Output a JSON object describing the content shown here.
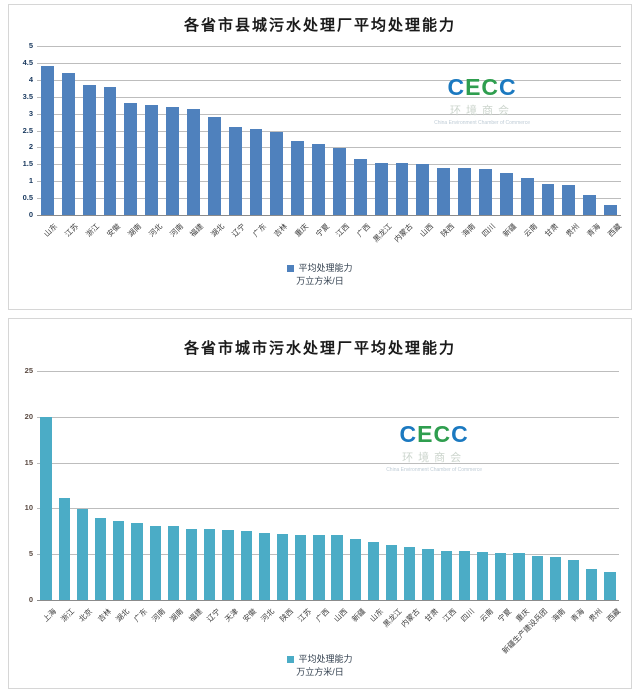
{
  "watermark": {
    "letters": [
      {
        "ch": "C",
        "color": "#1b79c0"
      },
      {
        "ch": "E",
        "color": "#2f9e4f"
      },
      {
        "ch": "C",
        "color": "#2f9e4f"
      },
      {
        "ch": "C",
        "color": "#1b79c0"
      }
    ],
    "cecc": "CECC",
    "chinese": "环境商会",
    "english": "China Environment Chamber of Commerce"
  },
  "chart_data": [
    {
      "type": "bar",
      "title": "各省市县城污水处理厂平均处理能力",
      "xlabel": "",
      "ylabel": "",
      "ylim": [
        0,
        5
      ],
      "yticks": [
        0,
        0.5,
        1,
        1.5,
        2,
        2.5,
        3,
        3.5,
        4,
        4.5,
        5
      ],
      "grid": true,
      "legend_position": "bottom-center",
      "legend": {
        "series_label": "平均处理能力",
        "unit_label": "万立方米/日"
      },
      "bar_color": "#4f81bd",
      "ytick_color": "#17375d",
      "categories": [
        "山东",
        "江苏",
        "浙江",
        "安徽",
        "湖南",
        "河北",
        "河南",
        "福建",
        "湖北",
        "辽宁",
        "广东",
        "吉林",
        "重庆",
        "宁夏",
        "江西",
        "广西",
        "黑龙江",
        "内蒙古",
        "山西",
        "陕西",
        "海南",
        "四川",
        "新疆",
        "云南",
        "甘肃",
        "贵州",
        "青海",
        "西藏"
      ],
      "values": [
        4.4,
        4.2,
        3.85,
        3.8,
        3.3,
        3.25,
        3.2,
        3.15,
        2.9,
        2.6,
        2.55,
        2.45,
        2.2,
        2.1,
        1.97,
        1.65,
        1.55,
        1.53,
        1.5,
        1.4,
        1.4,
        1.35,
        1.25,
        1.1,
        0.92,
        0.88,
        0.6,
        0.3
      ]
    },
    {
      "type": "bar",
      "title": "各省市城市污水处理厂平均处理能力",
      "xlabel": "",
      "ylabel": "",
      "ylim": [
        0,
        25
      ],
      "yticks": [
        0,
        5,
        10,
        15,
        20,
        25
      ],
      "grid": true,
      "legend_position": "bottom-center",
      "legend": {
        "series_label": "平均处理能力",
        "unit_label": "万立方米/日"
      },
      "bar_color": "#4bacc6",
      "ytick_color": "#5b4b43",
      "categories": [
        "上海",
        "浙江",
        "北京",
        "吉林",
        "湖北",
        "广东",
        "河南",
        "湖南",
        "福建",
        "辽宁",
        "天津",
        "安徽",
        "河北",
        "陕西",
        "江苏",
        "广西",
        "山西",
        "新疆",
        "山东",
        "黑龙江",
        "内蒙古",
        "甘肃",
        "江西",
        "四川",
        "云南",
        "宁夏",
        "重庆",
        "新疆生产建设兵团",
        "海南",
        "青海",
        "贵州",
        "西藏"
      ],
      "values": [
        20,
        11.1,
        9.9,
        8.9,
        8.6,
        8.4,
        8.1,
        8.1,
        7.8,
        7.7,
        7.6,
        7.5,
        7.3,
        7.2,
        7.1,
        7.1,
        7.1,
        6.65,
        6.3,
        6.05,
        5.8,
        5.55,
        5.3,
        5.3,
        5.2,
        5.1,
        5.1,
        4.8,
        4.7,
        4.4,
        3.4,
        3.1
      ]
    }
  ]
}
